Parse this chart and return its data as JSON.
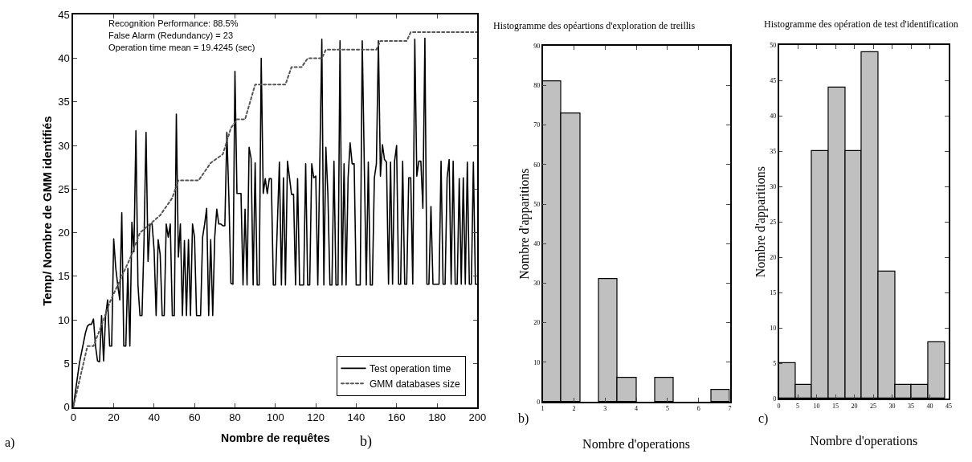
{
  "chart_data": [
    {
      "type": "line",
      "xlabel": "Nombre de requêtes",
      "ylabel": "Temp/ Nombre de GMM identifiés",
      "xlim": [
        0,
        200
      ],
      "xticks": [
        0,
        20,
        40,
        60,
        80,
        100,
        120,
        140,
        160,
        180,
        200
      ],
      "ylim": [
        0,
        45
      ],
      "yticks": [
        0,
        5,
        10,
        15,
        20,
        25,
        30,
        35,
        40,
        45
      ],
      "legend": "bottom right",
      "annotations": [
        "Recognition Performance: 88.5%",
        "False Alarm (Redundancy) = 23",
        "Operation time mean = 19.4245 (sec)",
        "a)"
      ],
      "series": [
        {
          "name": "Test operation time",
          "color": "#000000",
          "line_style": "solid",
          "x": [
            0,
            3,
            6,
            7,
            8,
            9,
            10,
            11,
            12,
            13,
            14,
            15,
            16,
            17,
            18,
            19,
            20,
            21,
            22,
            23,
            24,
            25,
            26,
            27,
            28,
            29,
            30,
            31,
            32,
            33,
            34,
            35,
            36,
            37,
            38,
            39,
            40,
            41,
            42,
            43,
            44,
            45,
            46,
            47,
            48,
            49,
            50,
            51,
            52,
            53,
            54,
            55,
            56,
            57,
            58,
            59,
            60,
            61,
            62,
            63,
            64,
            65,
            66,
            67,
            68,
            69,
            70,
            71,
            72,
            73,
            74,
            75,
            76,
            77,
            78,
            79,
            80,
            81,
            82,
            83,
            84,
            85,
            86,
            87,
            88,
            89,
            90,
            91,
            92,
            93,
            94,
            95,
            96,
            97,
            98,
            99,
            100,
            102,
            103,
            104,
            105,
            106,
            108,
            109,
            110,
            111,
            112,
            114,
            115,
            116,
            117,
            118,
            119,
            120,
            121,
            123,
            124,
            125,
            126,
            127,
            128,
            129,
            130,
            131,
            132,
            133,
            134,
            135,
            136,
            137,
            138,
            139,
            140,
            141,
            142,
            143,
            145,
            146,
            147,
            148,
            149,
            150,
            151,
            152,
            153,
            154,
            155,
            156,
            157,
            158,
            159,
            160,
            161,
            162,
            163,
            164,
            165,
            166,
            167,
            168,
            169,
            170,
            171,
            172,
            173,
            174,
            175,
            176,
            177,
            178,
            181,
            182,
            183,
            184,
            185,
            186,
            187,
            188,
            189,
            190,
            191,
            192,
            193,
            194,
            195,
            196,
            197,
            198,
            199,
            200
          ],
          "values": [
            0,
            5,
            8.5,
            9.3,
            9.5,
            9.5,
            10.1,
            7,
            5.3,
            5.2,
            10.5,
            5.3,
            10.5,
            12.3,
            7,
            7,
            19.3,
            16,
            14,
            12.3,
            22.3,
            7,
            7,
            15.9,
            7,
            21.2,
            17.8,
            31.7,
            14,
            10.5,
            10.5,
            19,
            31.5,
            16.7,
            21,
            21,
            18,
            10.5,
            19.2,
            17.5,
            10.5,
            10.5,
            21,
            19.5,
            21,
            10.5,
            10.5,
            33.6,
            17.2,
            21,
            10.5,
            19.1,
            10.5,
            19.2,
            10.5,
            21,
            19.5,
            10.5,
            10.5,
            10.5,
            19.5,
            21,
            22.8,
            10.5,
            19.2,
            10.5,
            19.5,
            22.7,
            21,
            21,
            20.8,
            20.8,
            31.5,
            24,
            14.2,
            14.1,
            38.5,
            24.5,
            24.5,
            24.5,
            14,
            22.7,
            14,
            29.8,
            28.5,
            14,
            28,
            14,
            14,
            40,
            24.5,
            26.2,
            24.5,
            26.2,
            26.2,
            14,
            14,
            28.1,
            14,
            26.3,
            14,
            28.2,
            24.4,
            24.4,
            14,
            26.2,
            14,
            14,
            27.9,
            14,
            14,
            27.9,
            26.3,
            26.5,
            14,
            42.2,
            14,
            29.8,
            24.4,
            14,
            14,
            28.2,
            14,
            14,
            42,
            14,
            27.9,
            14,
            26.3,
            30.3,
            27.9,
            27.9,
            14,
            14,
            14,
            42,
            14,
            28.1,
            14,
            14,
            26.3,
            27.9,
            42,
            26.5,
            30.1,
            28.4,
            28.1,
            14.1,
            28.1,
            14.1,
            28.2,
            30,
            14.1,
            14.1,
            28.2,
            14.1,
            14.1,
            26.3,
            26.3,
            14.1,
            42.2,
            26.5,
            28.2,
            28.2,
            22.8,
            42.3,
            14.1,
            14.1,
            23,
            14.1,
            14.1,
            28.2,
            14.1,
            14.1,
            26.3,
            28.4,
            14.1,
            28.2,
            14.1,
            14.1,
            26.2,
            14.1,
            26.3,
            14.1,
            28.1,
            14.1,
            14.1,
            28.1,
            14.1,
            14.1
          ]
        },
        {
          "name": "GMM databases size",
          "color": "#555555",
          "line_style": "dotted",
          "x": [
            0,
            5,
            7,
            10,
            15,
            18,
            22,
            28,
            33,
            38,
            43,
            49,
            52,
            62,
            68,
            74,
            78,
            81,
            85,
            90,
            105,
            108,
            113,
            116,
            123,
            125,
            150,
            152,
            165,
            167,
            200
          ],
          "values": [
            0,
            5,
            7,
            7,
            10,
            12,
            14,
            17,
            20,
            21,
            22,
            24,
            26,
            26,
            28,
            29,
            32,
            33,
            33,
            37,
            37,
            39,
            39,
            40,
            40,
            41,
            41,
            42,
            42,
            43,
            43
          ]
        }
      ]
    },
    {
      "type": "histogram",
      "title": "Histogramme des opéartions d'exploration de treillis",
      "xlabel": "Nombre d'operations",
      "ylabel": "Nombre d'apparitions",
      "xlim": [
        1,
        7
      ],
      "xticks": [
        1,
        2,
        3,
        4,
        5,
        6,
        7
      ],
      "ylim": [
        0,
        90
      ],
      "yticks": [
        0,
        10,
        20,
        30,
        40,
        50,
        60,
        70,
        80,
        90
      ],
      "color": "#c0c0c0",
      "annotations": [
        "b)",
        "b)"
      ],
      "bins": [
        1,
        1.6,
        2.2,
        2.8,
        3.4,
        4.0,
        4.6,
        5.2,
        5.8,
        6.4,
        7.0
      ],
      "values": [
        81,
        73,
        0,
        31,
        6,
        0,
        6,
        0,
        0,
        3
      ]
    },
    {
      "type": "histogram",
      "title": "Histogramme des opération de test d'identification",
      "xlabel": "Nombre d'operations",
      "ylabel": "Nombre d'apparitions",
      "xlim": [
        0,
        45
      ],
      "xticks": [
        0,
        5,
        10,
        15,
        20,
        25,
        30,
        35,
        40,
        45
      ],
      "ylim": [
        0,
        50
      ],
      "yticks": [
        0,
        5,
        10,
        15,
        20,
        25,
        30,
        35,
        40,
        45,
        50
      ],
      "color": "#c0c0c0",
      "annotations": [
        "c)"
      ],
      "bins": [
        0,
        4.4,
        8.8,
        13.2,
        17.6,
        22,
        26.4,
        30.8,
        35.2,
        39.6,
        44
      ],
      "values": [
        5,
        2,
        35,
        44,
        35,
        49,
        18,
        2,
        2,
        8
      ]
    }
  ]
}
